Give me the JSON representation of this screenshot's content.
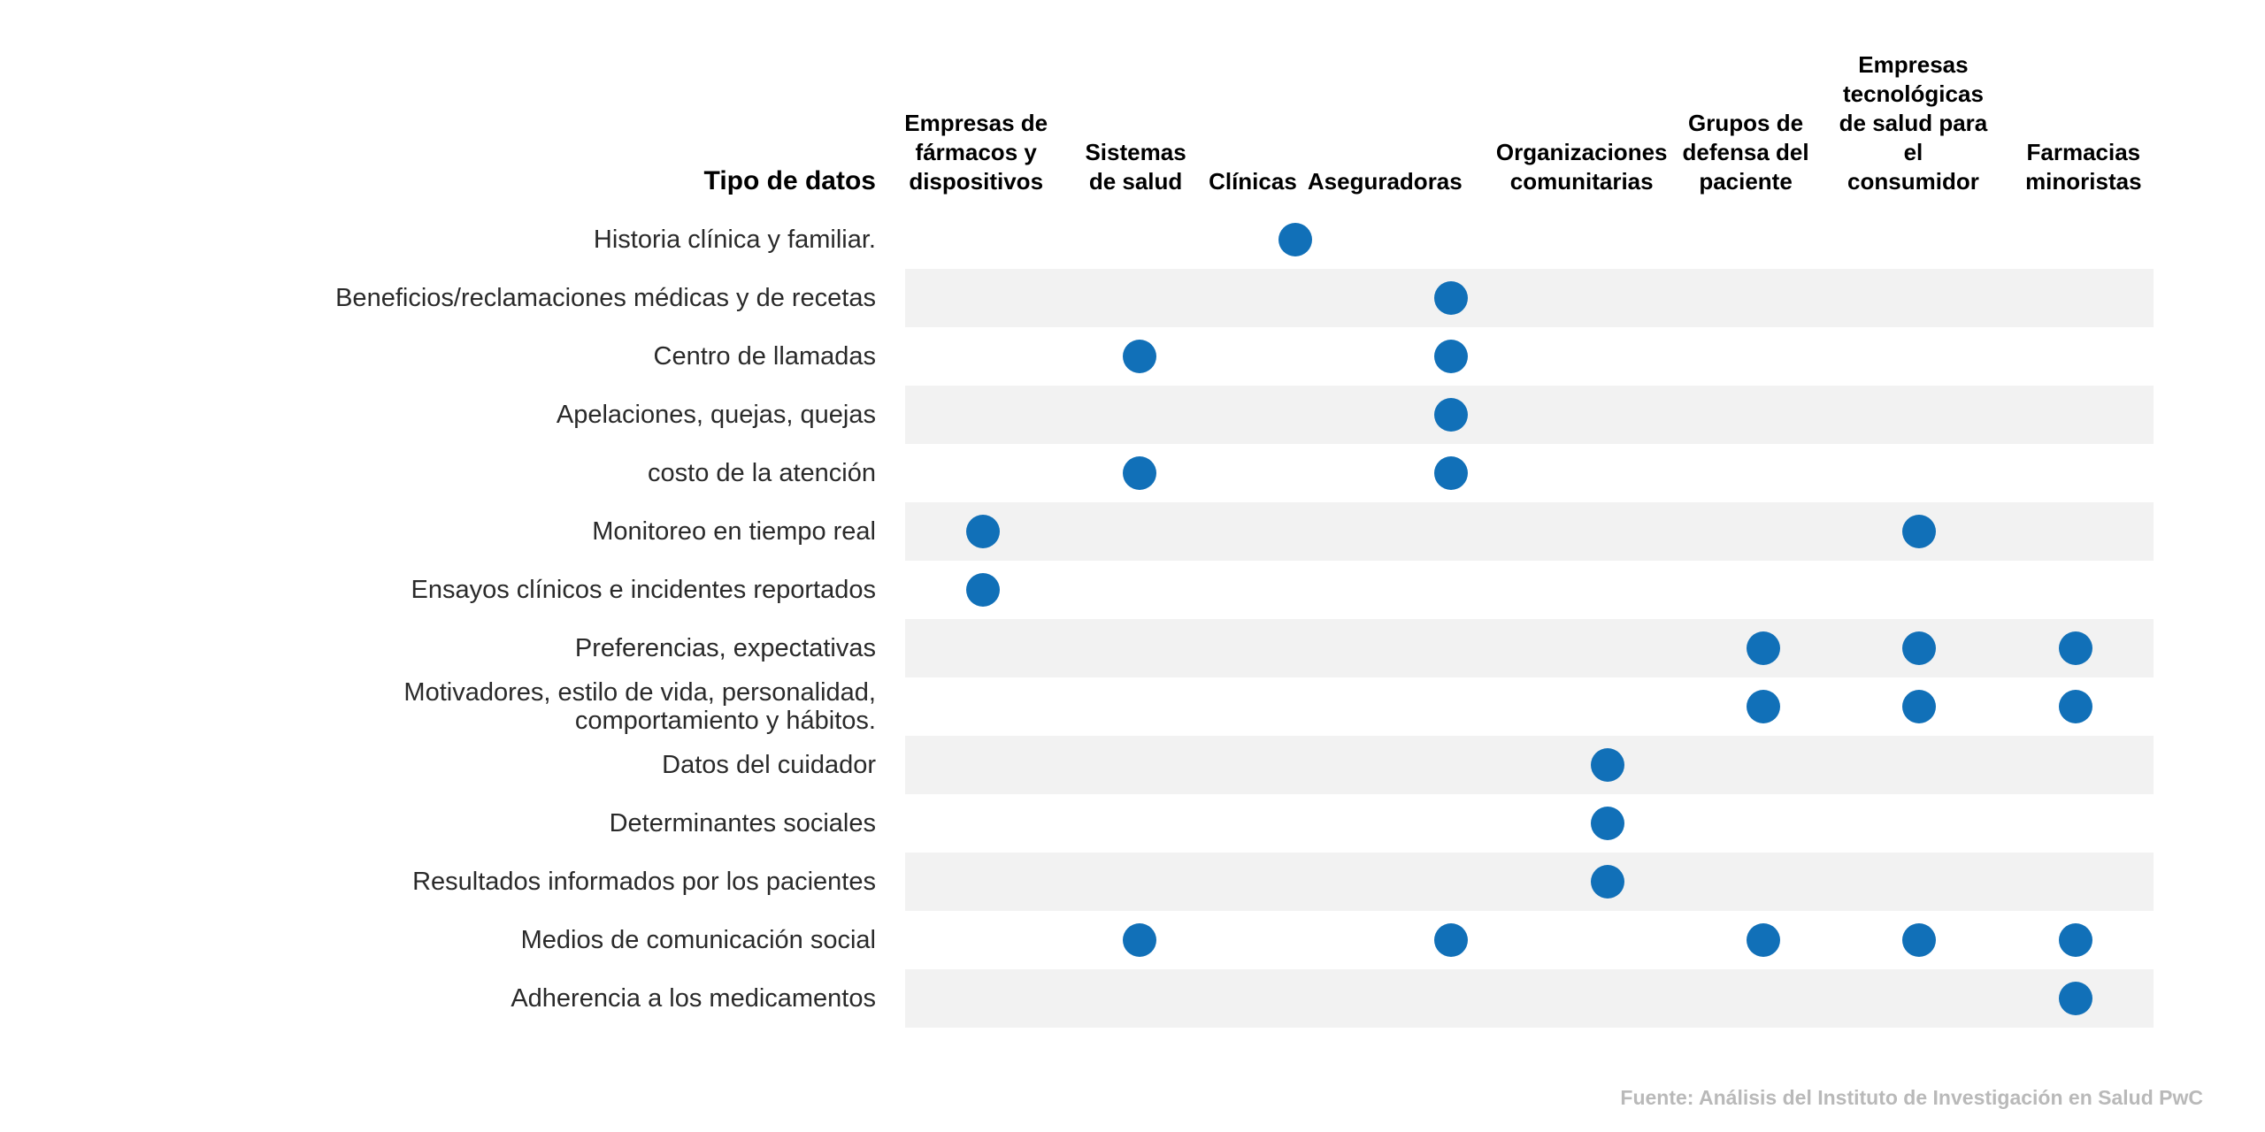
{
  "chart_data": {
    "type": "heatmap",
    "marker": "dot",
    "corner_label": "Tipo de datos",
    "columns": [
      "Empresas de fármacos y dispositivos",
      "Sistemas de salud",
      "Clínicas",
      "Aseguradoras",
      "Organizaciones comunitarias",
      "Grupos de defensa del paciente",
      "Empresas tecnológicas de salud para el consumidor",
      "Farmacias minoristas"
    ],
    "rows": [
      {
        "label": "Historia clínica y familiar.",
        "values": [
          0,
          0,
          1,
          0,
          0,
          0,
          0,
          0
        ]
      },
      {
        "label": "Beneficios/reclamaciones médicas y de recetas",
        "values": [
          0,
          0,
          0,
          1,
          0,
          0,
          0,
          0
        ]
      },
      {
        "label": "Centro de llamadas",
        "values": [
          0,
          1,
          0,
          1,
          0,
          0,
          0,
          0
        ]
      },
      {
        "label": "Apelaciones, quejas, quejas",
        "values": [
          0,
          0,
          0,
          1,
          0,
          0,
          0,
          0
        ]
      },
      {
        "label": "costo de la atención",
        "values": [
          0,
          1,
          0,
          1,
          0,
          0,
          0,
          0
        ]
      },
      {
        "label": "Monitoreo en tiempo real",
        "values": [
          1,
          0,
          0,
          0,
          0,
          0,
          1,
          0
        ]
      },
      {
        "label": "Ensayos clínicos e incidentes reportados",
        "values": [
          1,
          0,
          0,
          0,
          0,
          0,
          0,
          0
        ]
      },
      {
        "label": "Preferencias, expectativas",
        "values": [
          0,
          0,
          0,
          0,
          0,
          1,
          1,
          1
        ]
      },
      {
        "label": "Motivadores, estilo de vida, personalidad, comportamiento y hábitos.",
        "values": [
          0,
          0,
          0,
          0,
          0,
          1,
          1,
          1
        ]
      },
      {
        "label": "Datos del cuidador",
        "values": [
          0,
          0,
          0,
          0,
          1,
          0,
          0,
          0
        ]
      },
      {
        "label": "Determinantes sociales",
        "values": [
          0,
          0,
          0,
          0,
          1,
          0,
          0,
          0
        ]
      },
      {
        "label": "Resultados informados por los pacientes",
        "values": [
          0,
          0,
          0,
          0,
          1,
          0,
          0,
          0
        ]
      },
      {
        "label": "Medios de comunicación social",
        "values": [
          0,
          1,
          0,
          1,
          0,
          1,
          1,
          1
        ]
      },
      {
        "label": "Adherencia a los medicamentos",
        "values": [
          0,
          0,
          0,
          0,
          0,
          0,
          0,
          1
        ]
      }
    ],
    "colors": {
      "dot": "#1170B8",
      "stripe": "#F2F2F2",
      "header_text": "#000000",
      "label_text": "#2A2A2A",
      "source_text": "#B9B9B9"
    },
    "grid": "alternating-row-stripes",
    "legend_position": "none",
    "source": "Fuente: Análisis del Instituto de Investigación en Salud PwC"
  }
}
